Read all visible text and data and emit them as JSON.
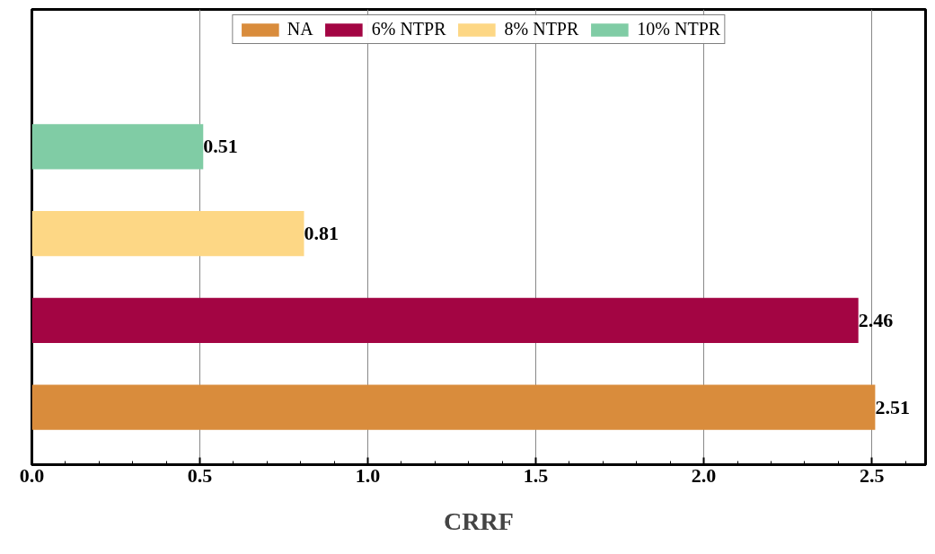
{
  "chart_data": {
    "type": "bar",
    "orientation": "horizontal",
    "xlabel": "CRRF",
    "categories": [
      null,
      null,
      null,
      null,
      null
    ],
    "series": [
      {
        "name": "NA",
        "color": "#d98c3c",
        "values": [
          null,
          null,
          null,
          null,
          2.51
        ]
      },
      {
        "name": "6% NTPR",
        "color": "#a30543",
        "values": [
          null,
          null,
          null,
          2.46,
          null
        ]
      },
      {
        "name": "8% NTPR",
        "color": "#fdd785",
        "values": [
          null,
          null,
          0.81,
          null,
          null
        ]
      },
      {
        "name": "10% NTPR",
        "color": "#80cca5",
        "values": [
          null,
          0.51,
          null,
          null,
          null
        ]
      }
    ],
    "xlim": [
      0,
      2.66
    ],
    "xticks": [
      {
        "value": 0,
        "label": "0.0"
      },
      0.5,
      {
        "value": 1,
        "label": "1.0"
      },
      1.5,
      {
        "value": 2,
        "label": "2.0"
      },
      2.5
    ],
    "grid": "x",
    "legend": "top",
    "tick_labels": "x",
    "data_labels": true
  }
}
